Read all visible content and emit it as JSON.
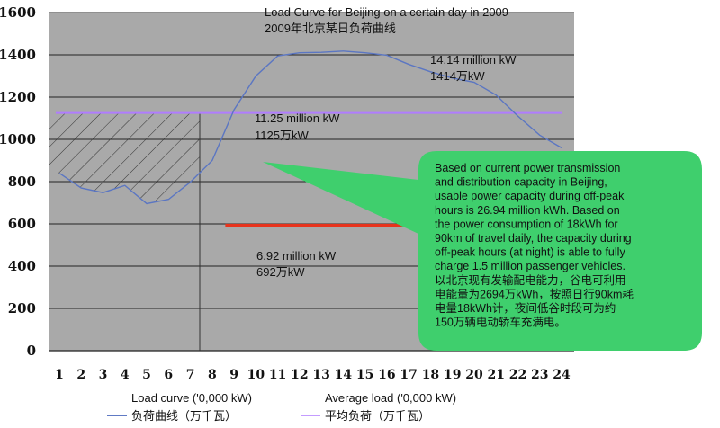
{
  "chart_data": {
    "type": "line",
    "title": "Load Curve for Beijing on a certain day in 2009",
    "subtitle": "2009年北京某日负荷曲线",
    "x": [
      1,
      2,
      3,
      4,
      5,
      6,
      7,
      8,
      9,
      10,
      11,
      12,
      13,
      14,
      15,
      16,
      17,
      18,
      19,
      20,
      21,
      22,
      23,
      24
    ],
    "categories": [
      "1",
      "2",
      "3",
      "4",
      "5",
      "6",
      "7",
      "8",
      "9",
      "10",
      "11",
      "12",
      "13",
      "14",
      "15",
      "16",
      "17",
      "18",
      "19",
      "20",
      "21",
      "22",
      "23",
      "24"
    ],
    "ylim": [
      0,
      1600
    ],
    "yticks": [
      "0",
      "200",
      "400",
      "600",
      "800",
      "1000",
      "1200",
      "1400",
      "1600"
    ],
    "series": [
      {
        "name": "Load curve ('0,000 kW)",
        "name_cn": "负荷曲线（万千瓦）",
        "color": "#5b76c2",
        "values": [
          840,
          770,
          748,
          782,
          696,
          716,
          798,
          900,
          1140,
          1300,
          1395,
          1410,
          1412,
          1418,
          1410,
          1398,
          1355,
          1320,
          1290,
          1270,
          1210,
          1110,
          1020,
          960
        ]
      },
      {
        "name": "Average load ('0,000 kW)",
        "name_cn": "平均负荷（万千瓦）",
        "color": "#b07cff",
        "values": [
          1125,
          1125,
          1125,
          1125,
          1125,
          1125,
          1125,
          1125,
          1125,
          1125,
          1125,
          1125,
          1125,
          1125,
          1125,
          1125,
          1125,
          1125,
          1125,
          1125,
          1125,
          1125,
          1125,
          1125
        ]
      }
    ],
    "reference_lines": [
      {
        "color": "#e8331c",
        "value": 592,
        "x_from": 8.6,
        "x_to": 19.0
      }
    ],
    "annotations": [
      {
        "line1": "14.14 million kW",
        "line2": "1414万kW"
      },
      {
        "line1": "11.25 million kW",
        "line2": "1125万kW"
      },
      {
        "line1": "6.92 million kW",
        "line2": "692万kW"
      }
    ],
    "callout": {
      "color": "#3fcf6d",
      "lines": [
        "Based on current power transmission",
        "and distribution capacity in Beijing,",
        "usable power capacity during off-peak",
        "hours is 26.94 million kWh. Based on",
        "the power consumption of 18kWh for",
        "90km of travel daily, the capacity during",
        "off-peak hours (at night) is able to fully",
        "charge 1.5 million passenger vehicles.",
        "以北京现有发输配电能力，谷电可利用",
        "电能量为2694万kWh，按照日行90km耗",
        "电量18kWh计，夜间低谷时段可为约",
        "150万辆电动轿车充满电。"
      ]
    },
    "grid": true,
    "plot_background": "#a9a9a9",
    "legend_position": "bottom"
  }
}
